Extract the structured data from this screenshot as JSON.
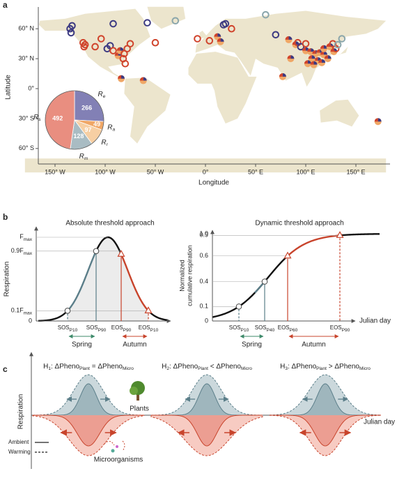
{
  "panel_a": {
    "label": "a",
    "y_axis_label": "Latitude",
    "x_axis_label": "Longitude",
    "y_ticks": [
      "60° N",
      "30° N",
      "0°",
      "30° S",
      "60° S"
    ],
    "x_ticks": [
      "150° W",
      "100° W",
      "50° W",
      "0°",
      "50° E",
      "100° E",
      "150° E"
    ],
    "pie": {
      "slices": [
        {
          "symbol": [
            "R",
            "e"
          ],
          "value": 266,
          "color": "#8280b5"
        },
        {
          "symbol": [
            "R",
            "a"
          ],
          "value": 49,
          "color": "#f0a766"
        },
        {
          "symbol": [
            "R",
            "r"
          ],
          "value": 97,
          "color": "#f7cfa3"
        },
        {
          "symbol": [
            "R",
            "m"
          ],
          "value": 128,
          "color": "#a9bcc3"
        },
        {
          "symbol": [
            "R",
            "s"
          ],
          "value": 492,
          "color": "#e98e80"
        }
      ]
    }
  },
  "panel_b": {
    "label": "b",
    "left": {
      "title": "Absolute threshold approach",
      "y_axis_label": "Respiration",
      "y_ticks": [
        [
          "F",
          "max"
        ],
        [
          "0.9F",
          "max"
        ],
        [
          "0.1F",
          "max"
        ],
        "0"
      ],
      "x_labels": [
        [
          "SOS",
          "P10"
        ],
        [
          "SOS",
          "P90"
        ],
        [
          "EOS",
          "P90"
        ],
        [
          "EOS",
          "P10"
        ]
      ],
      "spring": "Spring",
      "autumn": "Autumn"
    },
    "right": {
      "title": "Dynamic threshold approach",
      "y_axis_label": [
        "Normalized",
        "cumulative respiration"
      ],
      "y_ticks": [
        "1.0",
        "0.9",
        "0.6",
        "0.4",
        "0.1",
        "0"
      ],
      "x_axis_label": "Julian day",
      "x_labels": [
        [
          "SOS",
          "P10"
        ],
        [
          "SOS",
          "P40"
        ],
        [
          "EOS",
          "P60"
        ],
        [
          "EOS",
          "P90"
        ]
      ],
      "spring": "Spring",
      "autumn": "Autumn"
    }
  },
  "panel_c": {
    "label": "c",
    "titles": [
      [
        "H",
        "1",
        ": ΔPheno",
        "Plant",
        " = ΔPheno",
        "Micro"
      ],
      [
        "H",
        "2",
        ": ΔPheno",
        "Plant",
        " < ΔPheno",
        "Micro"
      ],
      [
        "H",
        "3",
        ": ΔPheno",
        "Plant",
        " > ΔPheno",
        "Micro"
      ]
    ],
    "y_axis_label": "Respiration",
    "x_axis_label": "Julian day",
    "plants": "Plants",
    "microorganisms": "Microorganisms",
    "legend": {
      "ambient": "Ambient",
      "warming": "Warming"
    }
  }
}
